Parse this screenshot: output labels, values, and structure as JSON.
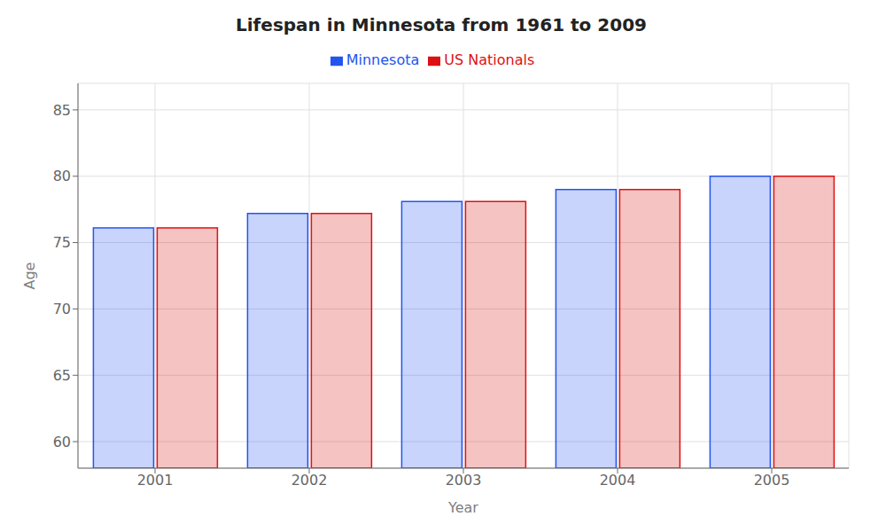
{
  "chart_data": {
    "type": "bar",
    "title": "Lifespan in Minnesota from 1961 to 2009",
    "x_label": "Year",
    "y_label": "Age",
    "categories": [
      "2001",
      "2002",
      "2003",
      "2004",
      "2005"
    ],
    "series": [
      {
        "name": "Minnesota",
        "color": "#2255ee",
        "values": [
          76.1,
          77.2,
          78.1,
          79.0,
          80.0
        ]
      },
      {
        "name": "US Nationals",
        "color": "#dd1111",
        "values": [
          76.1,
          77.2,
          78.1,
          79.0,
          80.0
        ]
      }
    ],
    "ylim": [
      58,
      87
    ],
    "yticks": [
      60,
      65,
      70,
      75,
      80,
      85
    ],
    "grid": true,
    "legend": "top"
  }
}
